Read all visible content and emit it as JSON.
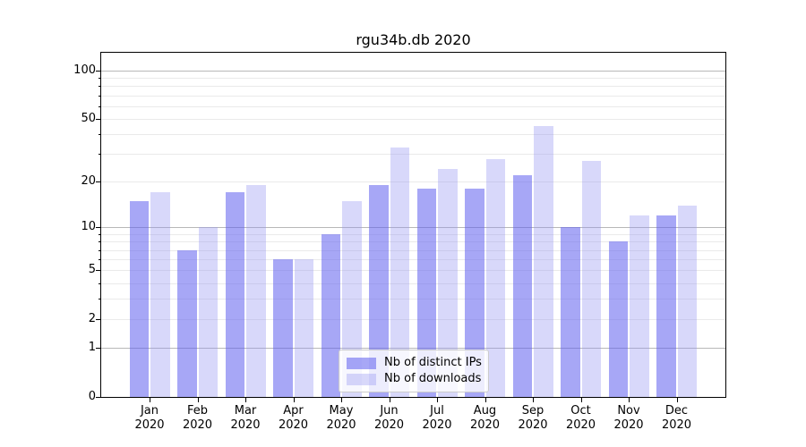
{
  "title": "rgu34b.db 2020",
  "colors": {
    "series1_fill": "rgba(95,95,238,0.55)",
    "series2_fill": "rgba(148,148,242,0.36)",
    "series1_effective": "#a8a8f5",
    "series2_effective": "#dadaf9",
    "grid_major": "#b8b8b8",
    "grid_minor": "#eaeaea",
    "axis": "#000000"
  },
  "legend": {
    "items": [
      {
        "label": "Nb of distinct IPs",
        "fill": "rgba(95,95,238,0.55)"
      },
      {
        "label": "Nb of downloads",
        "fill": "rgba(148,148,242,0.36)"
      }
    ]
  },
  "chart_data": {
    "type": "bar",
    "title": "rgu34b.db 2020",
    "categories": [
      "Jan",
      "Feb",
      "Mar",
      "Apr",
      "May",
      "Jun",
      "Jul",
      "Aug",
      "Sep",
      "Oct",
      "Nov",
      "Dec"
    ],
    "year_label": "2020",
    "series": [
      {
        "name": "Nb of distinct IPs",
        "values": [
          15,
          7,
          17,
          6,
          9,
          19,
          18,
          18,
          22,
          10,
          8,
          12
        ]
      },
      {
        "name": "Nb of downloads",
        "values": [
          17,
          10,
          19,
          6,
          15,
          33,
          24,
          28,
          45,
          27,
          12,
          14
        ]
      }
    ],
    "xlabel": "",
    "ylabel": "",
    "y_axis": {
      "scale": "log1p",
      "tick_values": [
        100,
        50,
        20,
        10,
        5,
        2,
        1,
        0
      ],
      "minor_gridline_values": [
        2,
        3,
        4,
        5,
        6,
        7,
        8,
        9,
        20,
        30,
        40,
        50,
        60,
        70,
        80,
        90
      ],
      "major_gridline_values": [
        1,
        10,
        100
      ],
      "ylim": [
        0,
        129
      ]
    },
    "grid": true,
    "legend_position": "lower center"
  }
}
